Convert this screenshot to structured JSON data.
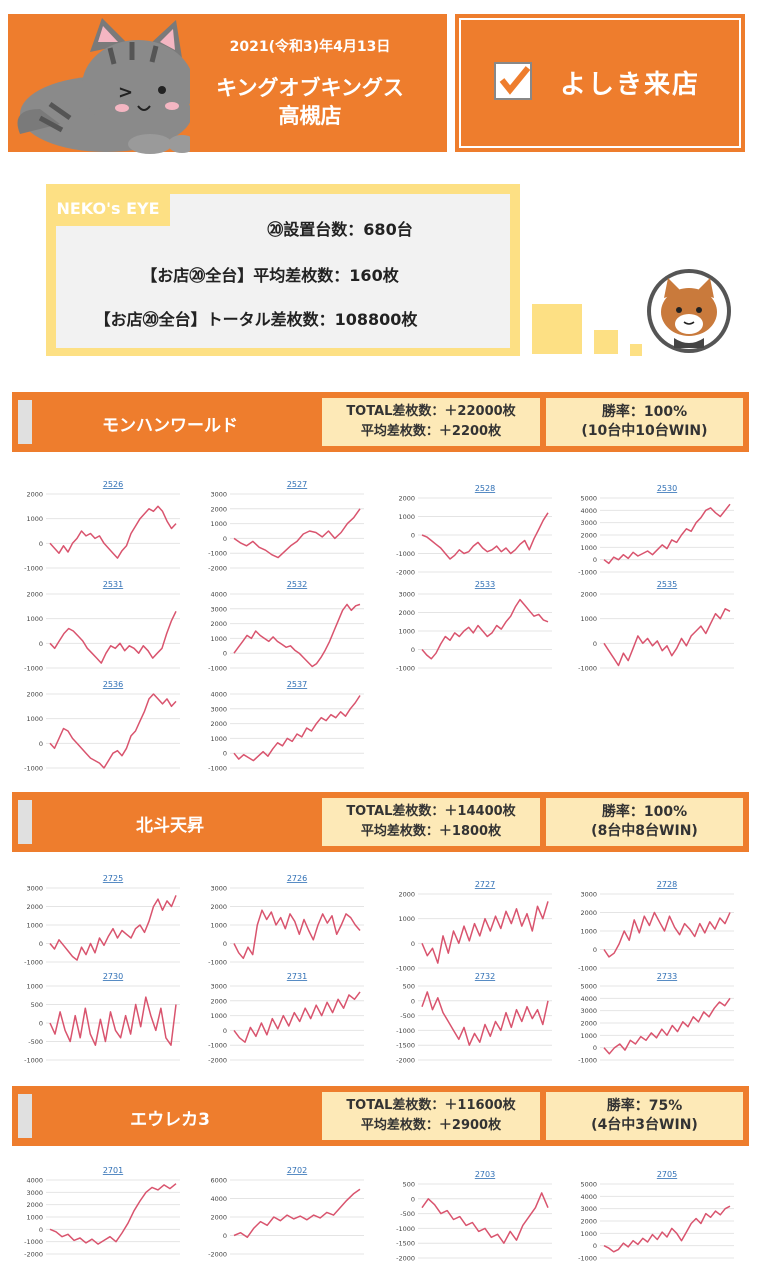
{
  "header": {
    "date": "2021(令和3)年4月13日",
    "store_line1": "キングオブキングス",
    "store_line2": "高槻店",
    "visit_label": "よしき来店",
    "brand_color": "#ee7d2d"
  },
  "neko": {
    "tag": "NEKO's EYE",
    "line1": "⑳設置台数：680台",
    "line2": "【お店⑳全台】平均差枚数：160枚",
    "line3": "【お店⑳全台】トータル差枚数：108800枚"
  },
  "sections": [
    {
      "title": "モンハンワールド",
      "total": "TOTAL差枚数：＋22000枚",
      "avg": "平均差枚数：＋2200枚",
      "winrate": "勝率：100%",
      "winsub": "(10台中10台WIN)"
    },
    {
      "title": "北斗天昇",
      "total": "TOTAL差枚数：＋14400枚",
      "avg": "平均差枚数：＋1800枚",
      "winrate": "勝率：100%",
      "winsub": "(8台中8台WIN)"
    },
    {
      "title": "エウレカ3",
      "total": "TOTAL差枚数：＋11600枚",
      "avg": "平均差枚数：＋2900枚",
      "winrate": "勝率：75%",
      "winsub": "(4台中3台WIN)"
    }
  ],
  "chart_data": [
    {
      "type": "line",
      "title": "2526",
      "ylim": [
        -1000,
        2000
      ],
      "yticks": [
        -1000,
        0,
        1000,
        2000
      ],
      "values": [
        0,
        -200,
        -400,
        -100,
        -350,
        0,
        200,
        500,
        300,
        400,
        200,
        300,
        0,
        -200,
        -400,
        -600,
        -300,
        -100,
        400,
        700,
        1000,
        1200,
        1400,
        1300,
        1500,
        1300,
        900,
        600,
        800
      ]
    },
    {
      "type": "line",
      "title": "2527",
      "ylim": [
        -2000,
        3000
      ],
      "yticks": [
        -2000,
        -1000,
        0,
        1000,
        2000,
        3000
      ],
      "values": [
        0,
        -300,
        -500,
        -200,
        -600,
        -800,
        -1100,
        -1300,
        -900,
        -500,
        -200,
        300,
        500,
        400,
        100,
        500,
        0,
        400,
        1000,
        1400,
        2000
      ]
    },
    {
      "type": "line",
      "title": "2528",
      "ylim": [
        -2000,
        2000
      ],
      "yticks": [
        -2000,
        -1000,
        0,
        1000,
        2000
      ],
      "values": [
        0,
        -100,
        -300,
        -500,
        -700,
        -1000,
        -1300,
        -1100,
        -800,
        -1000,
        -900,
        -600,
        -400,
        -700,
        -900,
        -800,
        -600,
        -900,
        -700,
        -1000,
        -800,
        -500,
        -300,
        -800,
        -200,
        300,
        800,
        1200
      ]
    },
    {
      "type": "line",
      "title": "2530",
      "ylim": [
        -1000,
        5000
      ],
      "yticks": [
        -1000,
        0,
        1000,
        2000,
        3000,
        4000,
        5000
      ],
      "values": [
        0,
        -300,
        200,
        0,
        400,
        100,
        600,
        300,
        500,
        700,
        400,
        800,
        1200,
        900,
        1600,
        1400,
        2000,
        2500,
        2300,
        3000,
        3400,
        4000,
        4200,
        3800,
        3500,
        4000,
        4500
      ]
    },
    {
      "type": "line",
      "title": "2531",
      "ylim": [
        -1000,
        2000
      ],
      "yticks": [
        -1000,
        0,
        1000,
        2000
      ],
      "values": [
        0,
        -200,
        100,
        400,
        600,
        500,
        300,
        100,
        -200,
        -400,
        -600,
        -800,
        -400,
        -100,
        -200,
        0,
        -300,
        -100,
        -200,
        -400,
        -100,
        -300,
        -600,
        -400,
        -200,
        400,
        900,
        1300
      ]
    },
    {
      "type": "line",
      "title": "2532",
      "ylim": [
        -1000,
        4000
      ],
      "yticks": [
        -1000,
        0,
        1000,
        2000,
        3000,
        4000
      ],
      "values": [
        0,
        400,
        800,
        1200,
        1000,
        1500,
        1200,
        1000,
        800,
        1100,
        800,
        600,
        400,
        500,
        200,
        0,
        -300,
        -600,
        -900,
        -700,
        -300,
        200,
        800,
        1500,
        2200,
        2900,
        3300,
        2900,
        3200,
        3300
      ]
    },
    {
      "type": "line",
      "title": "2533",
      "ylim": [
        -1000,
        3000
      ],
      "yticks": [
        -1000,
        0,
        1000,
        2000,
        3000
      ],
      "values": [
        0,
        -300,
        -500,
        -200,
        300,
        700,
        500,
        900,
        700,
        1000,
        1200,
        900,
        1300,
        1000,
        700,
        900,
        1300,
        1100,
        1500,
        1800,
        2300,
        2700,
        2400,
        2100,
        1800,
        1900,
        1600,
        1500
      ]
    },
    {
      "type": "line",
      "title": "2535",
      "ylim": [
        -1000,
        2000
      ],
      "yticks": [
        -1000,
        0,
        1000,
        2000
      ],
      "values": [
        0,
        -300,
        -600,
        -900,
        -400,
        -700,
        -200,
        300,
        0,
        200,
        -100,
        100,
        -300,
        -100,
        -500,
        -200,
        200,
        -100,
        300,
        500,
        700,
        400,
        800,
        1200,
        1000,
        1400,
        1300
      ]
    },
    {
      "type": "line",
      "title": "2536",
      "ylim": [
        -1000,
        2000
      ],
      "yticks": [
        -1000,
        0,
        1000,
        2000
      ],
      "values": [
        0,
        -200,
        200,
        600,
        500,
        200,
        0,
        -200,
        -400,
        -600,
        -700,
        -800,
        -1000,
        -700,
        -400,
        -300,
        -500,
        -200,
        300,
        500,
        900,
        1300,
        1800,
        2000,
        1800,
        1600,
        1800,
        1500,
        1700
      ]
    },
    {
      "type": "line",
      "title": "2537",
      "ylim": [
        -1000,
        4000
      ],
      "yticks": [
        -1000,
        0,
        1000,
        2000,
        3000,
        4000
      ],
      "values": [
        0,
        -400,
        -100,
        -300,
        -500,
        -200,
        100,
        -200,
        300,
        700,
        500,
        1000,
        800,
        1300,
        1100,
        1700,
        1500,
        2000,
        2400,
        2200,
        2600,
        2400,
        2800,
        2500,
        3000,
        3400,
        3900
      ]
    },
    {
      "type": "line",
      "title": "2725",
      "ylim": [
        -1000,
        3000
      ],
      "yticks": [
        -1000,
        0,
        1000,
        2000,
        3000
      ],
      "values": [
        0,
        -300,
        200,
        -100,
        -400,
        -700,
        -900,
        -200,
        -600,
        0,
        -500,
        300,
        -100,
        400,
        800,
        300,
        700,
        500,
        300,
        800,
        1000,
        600,
        1200,
        2000,
        2400,
        1800,
        2300,
        2000,
        2600
      ]
    },
    {
      "type": "line",
      "title": "2726",
      "ylim": [
        -1000,
        3000
      ],
      "yticks": [
        -1000,
        0,
        1000,
        2000,
        3000
      ],
      "values": [
        0,
        -500,
        -800,
        -200,
        -600,
        1000,
        1800,
        1300,
        1700,
        1000,
        1400,
        800,
        1600,
        1200,
        500,
        1300,
        700,
        200,
        1000,
        1600,
        1100,
        1500,
        500,
        1000,
        1600,
        1400,
        1000,
        700
      ]
    },
    {
      "type": "line",
      "title": "2727",
      "ylim": [
        -1000,
        2000
      ],
      "yticks": [
        -1000,
        0,
        1000,
        2000
      ],
      "values": [
        0,
        -500,
        -200,
        -800,
        300,
        -400,
        500,
        0,
        700,
        100,
        800,
        300,
        1000,
        500,
        1100,
        600,
        1300,
        800,
        1400,
        700,
        1200,
        500,
        1500,
        1000,
        1700
      ]
    },
    {
      "type": "line",
      "title": "2728",
      "ylim": [
        -1000,
        3000
      ],
      "yticks": [
        -1000,
        0,
        1000,
        2000,
        3000
      ],
      "values": [
        0,
        -400,
        -200,
        300,
        1000,
        500,
        1600,
        900,
        1800,
        1300,
        2000,
        1500,
        1000,
        1800,
        1200,
        800,
        1400,
        1100,
        700,
        1400,
        900,
        1500,
        1100,
        1700,
        1400,
        2000
      ]
    },
    {
      "type": "line",
      "title": "2730",
      "ylim": [
        -1000,
        1000
      ],
      "yticks": [
        -1000,
        -500,
        0,
        500,
        1000
      ],
      "values": [
        0,
        -300,
        300,
        -200,
        -500,
        200,
        -400,
        400,
        -300,
        -600,
        100,
        -500,
        300,
        -200,
        -400,
        200,
        -300,
        500,
        -100,
        700,
        200,
        -200,
        400,
        -400,
        -600,
        500
      ]
    },
    {
      "type": "line",
      "title": "2731",
      "ylim": [
        -2000,
        3000
      ],
      "yticks": [
        -2000,
        -1000,
        0,
        1000,
        2000,
        3000
      ],
      "values": [
        0,
        -500,
        -800,
        200,
        -400,
        500,
        -300,
        800,
        100,
        1000,
        300,
        1200,
        600,
        1500,
        800,
        1700,
        1000,
        1900,
        1200,
        2100,
        1500,
        2400,
        2100,
        2600
      ]
    },
    {
      "type": "line",
      "title": "2732",
      "ylim": [
        -2000,
        500
      ],
      "yticks": [
        -2000,
        -1500,
        -1000,
        -500,
        0,
        500
      ],
      "values": [
        -200,
        300,
        -300,
        100,
        -400,
        -700,
        -1000,
        -1300,
        -900,
        -1500,
        -1100,
        -1400,
        -800,
        -1200,
        -700,
        -1000,
        -400,
        -900,
        -300,
        -700,
        -200,
        -600,
        -300,
        -800,
        0
      ]
    },
    {
      "type": "line",
      "title": "2733",
      "ylim": [
        -1000,
        5000
      ],
      "yticks": [
        -1000,
        0,
        1000,
        2000,
        3000,
        4000,
        5000
      ],
      "values": [
        0,
        -500,
        0,
        300,
        -200,
        600,
        300,
        900,
        600,
        1200,
        800,
        1500,
        1000,
        1800,
        1300,
        2100,
        1700,
        2500,
        2100,
        2900,
        2500,
        3200,
        3700,
        3400,
        4000
      ]
    },
    {
      "type": "line",
      "title": "2701",
      "ylim": [
        -2000,
        4000
      ],
      "yticks": [
        -2000,
        -1000,
        0,
        1000,
        2000,
        3000,
        4000
      ],
      "values": [
        0,
        -200,
        -600,
        -400,
        -900,
        -700,
        -1100,
        -800,
        -1200,
        -900,
        -600,
        -1000,
        -300,
        500,
        1500,
        2300,
        3000,
        3400,
        3200,
        3600,
        3300,
        3700
      ]
    },
    {
      "type": "line",
      "title": "2702",
      "ylim": [
        -2000,
        6000
      ],
      "yticks": [
        -2000,
        0,
        2000,
        4000,
        6000
      ],
      "values": [
        0,
        300,
        -200,
        800,
        1500,
        1100,
        2000,
        1600,
        2200,
        1800,
        2100,
        1700,
        2200,
        1900,
        2500,
        2200,
        3000,
        3800,
        4500,
        5000
      ]
    },
    {
      "type": "line",
      "title": "2703",
      "ylim": [
        -2000,
        500
      ],
      "yticks": [
        -2000,
        -1500,
        -1000,
        -500,
        0,
        500
      ],
      "values": [
        -300,
        0,
        -200,
        -500,
        -400,
        -700,
        -600,
        -900,
        -800,
        -1100,
        -1000,
        -1300,
        -1200,
        -1500,
        -1100,
        -1400,
        -900,
        -600,
        -300,
        200,
        -300
      ]
    },
    {
      "type": "line",
      "title": "2705",
      "ylim": [
        -1000,
        5000
      ],
      "yticks": [
        -1000,
        0,
        1000,
        2000,
        3000,
        4000,
        5000
      ],
      "values": [
        0,
        -200,
        -500,
        -300,
        200,
        -100,
        400,
        100,
        600,
        300,
        900,
        500,
        1100,
        700,
        1400,
        1000,
        400,
        1100,
        1800,
        2200,
        1800,
        2600,
        2300,
        2800,
        2500,
        3000,
        3200
      ]
    }
  ]
}
